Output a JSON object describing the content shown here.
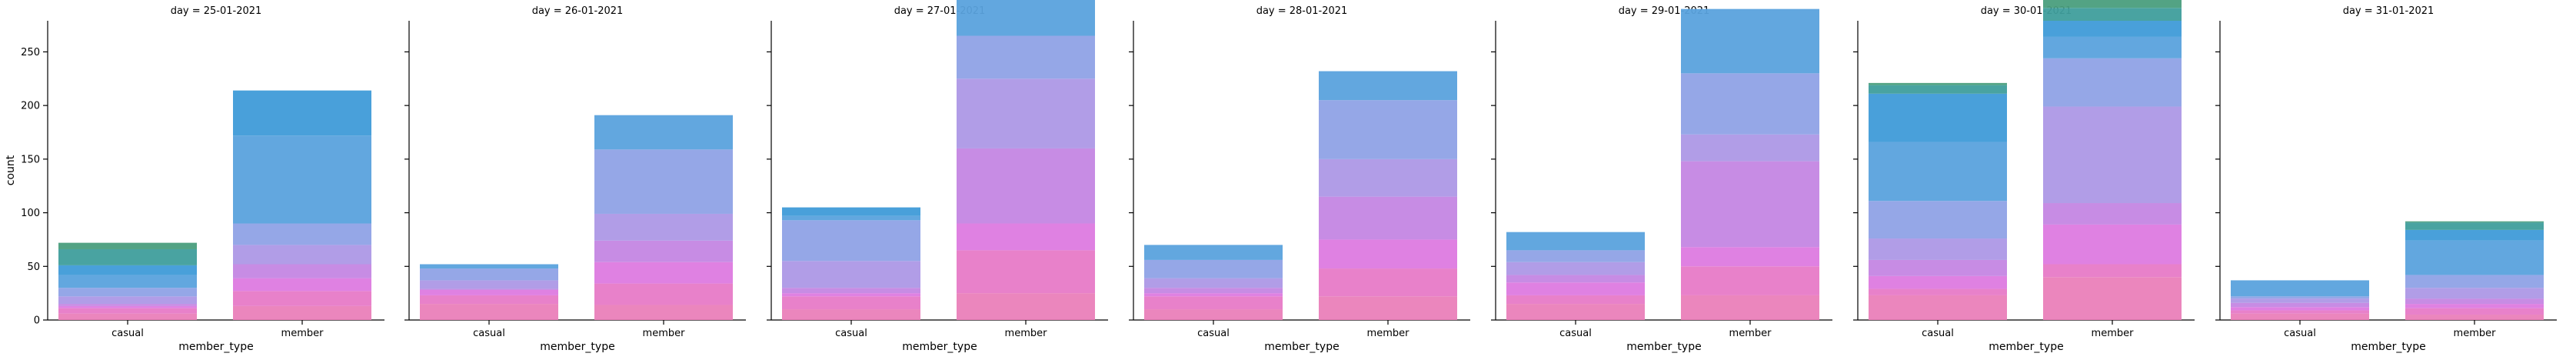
{
  "figure": {
    "ylabel": "count",
    "xlabel": "member_type",
    "facet_var": "day"
  },
  "chart_data": {
    "type": "bar",
    "stacked": true,
    "facets": [
      "day = 25-01-2021",
      "day = 26-01-2021",
      "day = 27-01-2021",
      "day = 28-01-2021",
      "day = 29-01-2021",
      "day = 30-01-2021",
      "day = 31-01-2021"
    ],
    "categories": [
      "casual",
      "member"
    ],
    "yticks": [
      0,
      50,
      100,
      150,
      200,
      250
    ],
    "ylim": [
      0,
      279
    ],
    "grid": false,
    "legend": "none",
    "layer_colors": [
      "#ea80b9",
      "#e77ac7",
      "#dd7ae0",
      "#c486e3",
      "#ad98e6",
      "#8fa2e6",
      "#5aa2dd",
      "#3f9bd8",
      "#3f9e9c",
      "#4a9e7d"
    ],
    "panels": [
      {
        "day": "25-01-2021",
        "stacks": [
          [
            6,
            5,
            2,
            2,
            7,
            8,
            12,
            9,
            15,
            6
          ],
          [
            13,
            14,
            12,
            13,
            18,
            20,
            82,
            42,
            0,
            0
          ]
        ]
      },
      {
        "day": "26-01-2021",
        "stacks": [
          [
            15,
            8,
            5,
            1,
            8,
            11,
            4,
            0,
            0,
            0
          ],
          [
            14,
            20,
            20,
            20,
            25,
            60,
            32,
            0,
            0,
            0
          ]
        ]
      },
      {
        "day": "27-01-2021",
        "stacks": [
          [
            10,
            12,
            3,
            5,
            25,
            38,
            4,
            8,
            0,
            0
          ],
          [
            25,
            40,
            25,
            70,
            65,
            40,
            39,
            0,
            0,
            0
          ]
        ]
      },
      {
        "day": "28-01-2021",
        "stacks": [
          [
            10,
            12,
            3,
            5,
            9,
            17,
            14,
            0,
            0,
            0
          ],
          [
            22,
            26,
            27,
            40,
            35,
            55,
            27,
            0,
            0,
            0
          ]
        ]
      },
      {
        "day": "29-01-2021",
        "stacks": [
          [
            15,
            8,
            12,
            7,
            12,
            11,
            17,
            0,
            0,
            0
          ],
          [
            23,
            27,
            18,
            80,
            25,
            57,
            60,
            0,
            0,
            0
          ]
        ]
      },
      {
        "day": "30-01-2021",
        "stacks": [
          [
            23,
            6,
            12,
            15,
            20,
            35,
            55,
            45,
            8,
            2
          ],
          [
            40,
            12,
            37,
            20,
            90,
            45,
            20,
            15,
            12,
            10
          ]
        ]
      },
      {
        "day": "31-01-2021",
        "stacks": [
          [
            6,
            3,
            3,
            4,
            4,
            2,
            15,
            0,
            0,
            0
          ],
          [
            5,
            6,
            4,
            5,
            10,
            12,
            32,
            10,
            7,
            1
          ]
        ]
      }
    ]
  }
}
